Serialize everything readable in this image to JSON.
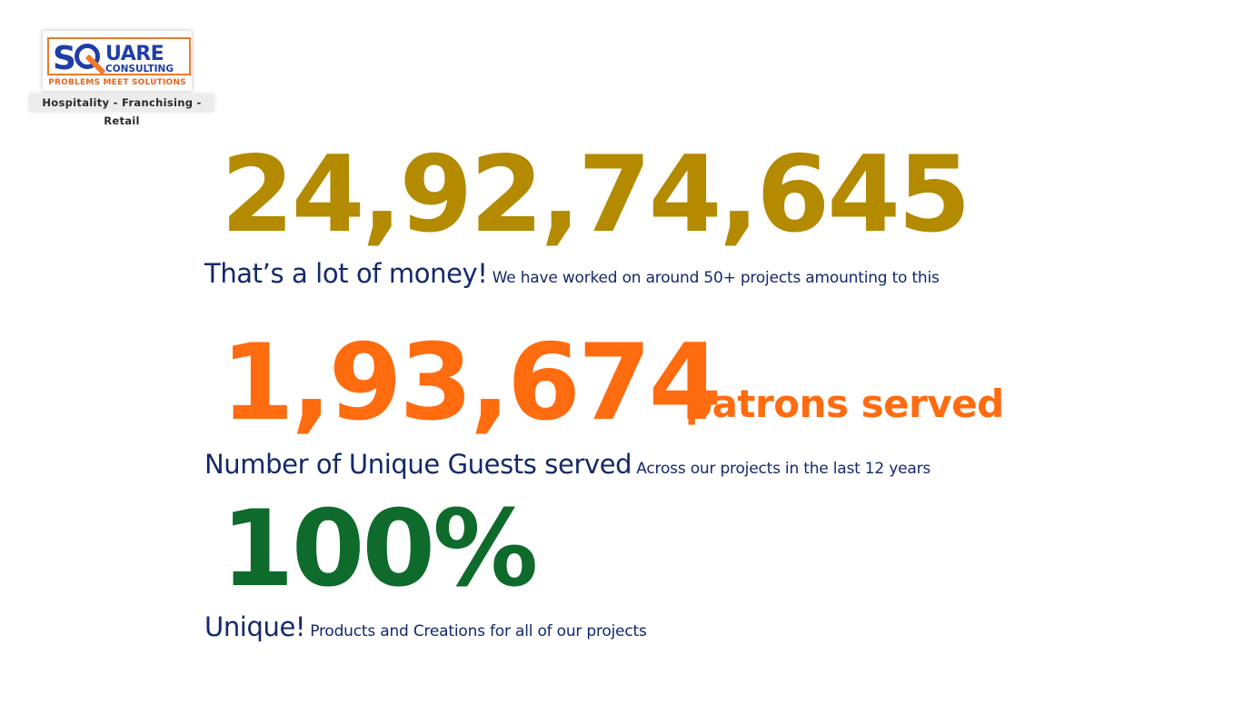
{
  "logo": {
    "wordmark": "SQUARE",
    "sub_wordmark": "CONSULTING",
    "tagline": "PROBLEMS MEET SOLUTIONS",
    "sectors": "Hospitality - Franchising - Retail",
    "colors": {
      "blue": "#1f3ea8",
      "orange": "#f07a2a"
    }
  },
  "stats": {
    "money": {
      "value": "24,92,74,645",
      "caption_lead": "That’s a lot of money!",
      "caption_rest": "We have worked on around 50+ projects amounting to this",
      "color": "#b48a00"
    },
    "guests": {
      "value": "1,93,674",
      "suffix": "patrons served",
      "caption_lead": "Number of Unique Guests served",
      "caption_rest": "Across our projects in the last 12 years",
      "color": "#ff6b0f"
    },
    "unique": {
      "value": "100%",
      "caption_lead": "Unique!",
      "caption_rest": "Products and Creations for all of our projects",
      "color": "#0e6b2c"
    }
  },
  "text_color": "#14296b"
}
